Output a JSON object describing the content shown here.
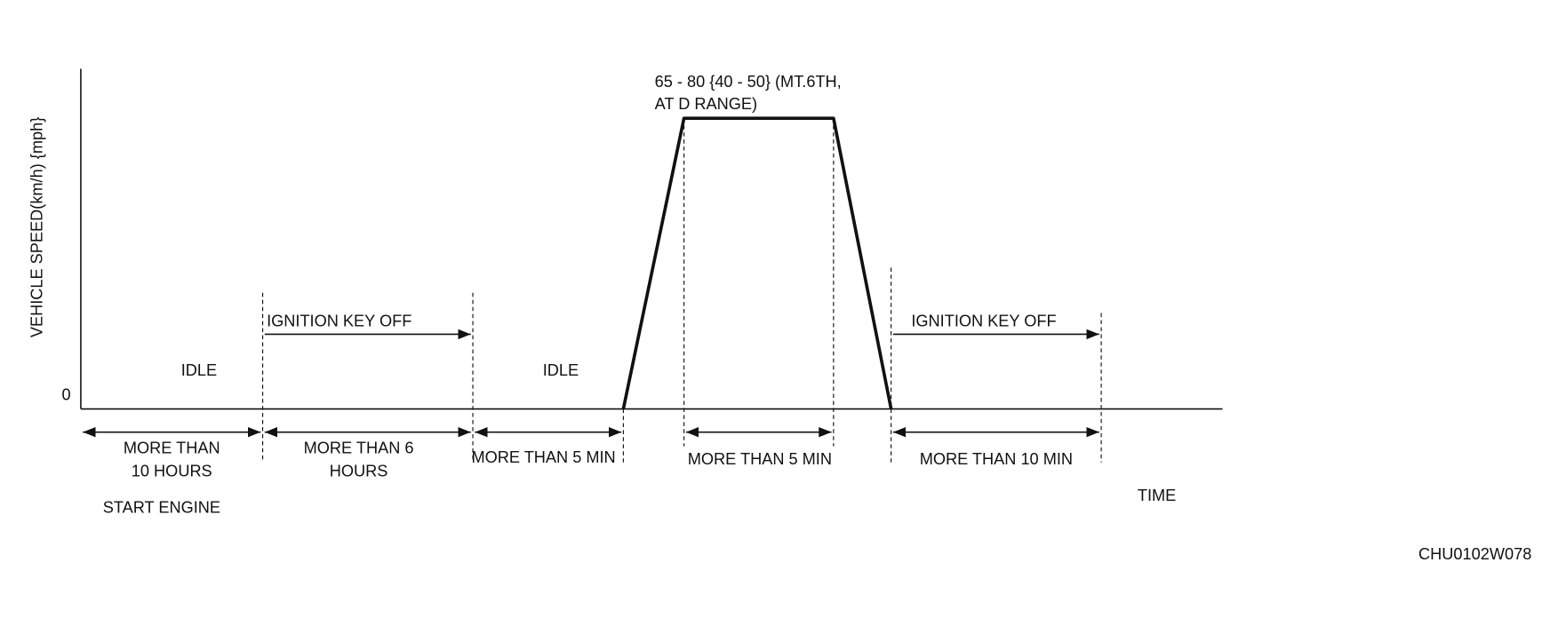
{
  "y_axis_label": "VEHICLE SPEED(km/h) {mph}",
  "zero_label": "0",
  "peak_label": [
    "65 - 80 {40 - 50} (MT.6TH,",
    "AT D RANGE)"
  ],
  "phases": [
    {
      "label": "IDLE"
    },
    {
      "label": "IGNITION KEY OFF"
    },
    {
      "label": "IDLE"
    },
    {
      "label": "IGNITION KEY OFF"
    }
  ],
  "durations": [
    [
      "MORE THAN",
      "10 HOURS"
    ],
    [
      "MORE THAN 6",
      "HOURS"
    ],
    [
      "MORE THAN 5 MIN"
    ],
    [
      "MORE THAN 5 MIN"
    ],
    [
      "MORE THAN 10 MIN"
    ]
  ],
  "start_label": "START ENGINE",
  "x_axis_label": "TIME",
  "figure_id": "CHU0102W078"
}
